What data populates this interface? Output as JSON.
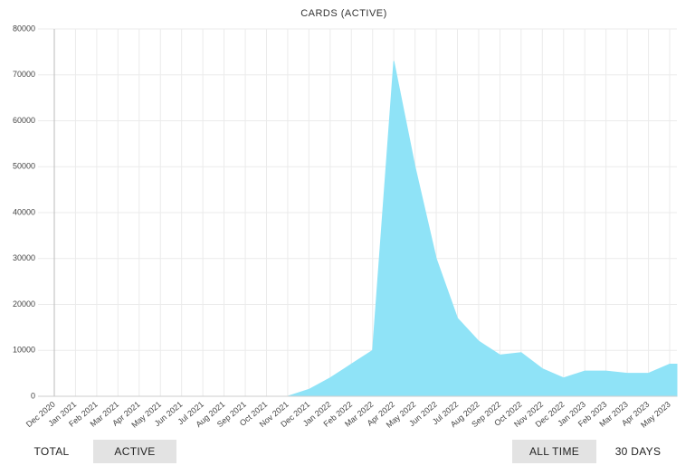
{
  "chart_data": {
    "type": "area",
    "title": "CARDS (ACTIVE)",
    "categories": [
      "Dec 2020",
      "Jan 2021",
      "Feb 2021",
      "Mar 2021",
      "Apr 2021",
      "May 2021",
      "Jun 2021",
      "Jul 2021",
      "Aug 2021",
      "Sep 2021",
      "Oct 2021",
      "Nov 2021",
      "Dec 2021",
      "Jan 2022",
      "Feb 2022",
      "Mar 2022",
      "Apr 2022",
      "May 2022",
      "Jun 2022",
      "Jul 2022",
      "Aug 2022",
      "Sep 2022",
      "Oct 2022",
      "Nov 2022",
      "Dec 2022",
      "Jan 2023",
      "Feb 2023",
      "Mar 2023",
      "Apr 2023",
      "May 2023"
    ],
    "values": [
      0,
      0,
      0,
      0,
      0,
      0,
      0,
      0,
      0,
      0,
      0,
      0,
      1500,
      4000,
      7000,
      10000,
      73000,
      50000,
      30000,
      17000,
      12000,
      9000,
      9500,
      6000,
      4000,
      5500,
      5500,
      5000,
      5000,
      7000
    ],
    "color": "#8fe3f7",
    "ylim": [
      0,
      80000
    ],
    "yticks": [
      0,
      10000,
      20000,
      30000,
      40000,
      50000,
      60000,
      70000,
      80000
    ],
    "grid": true
  },
  "controls": {
    "metric": [
      "TOTAL",
      "ACTIVE"
    ],
    "range": [
      "ALL TIME",
      "30 DAYS"
    ]
  }
}
